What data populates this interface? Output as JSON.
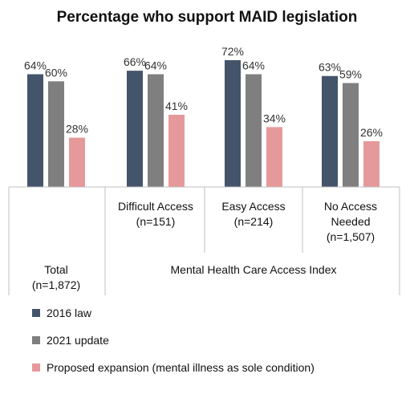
{
  "chart_data": {
    "type": "bar",
    "title": "Percentage who support MAID legislation",
    "ylim": [
      0,
      80
    ],
    "categories": [
      {
        "lines": [
          "Total",
          "(n=1,872)"
        ]
      },
      {
        "lines": [
          "Difficult Access",
          "(n=151)"
        ]
      },
      {
        "lines": [
          "Easy Access",
          "(n=214)"
        ]
      },
      {
        "lines": [
          "No Access",
          "Needed",
          "(n=1,507)"
        ]
      }
    ],
    "group_label": "Mental Health Care Access Index",
    "series": [
      {
        "name": "2016 law",
        "color": "#44546a",
        "values": [
          64,
          66,
          72,
          63
        ]
      },
      {
        "name": "2021 update",
        "color": "#7f7f7f",
        "values": [
          60,
          64,
          64,
          59
        ]
      },
      {
        "name": "Proposed expansion (mental illness as sole condition)",
        "color": "#e6999b",
        "values": [
          28,
          41,
          34,
          26
        ]
      }
    ],
    "value_suffix": "%",
    "legend_position": "bottom-left",
    "grid": false
  }
}
